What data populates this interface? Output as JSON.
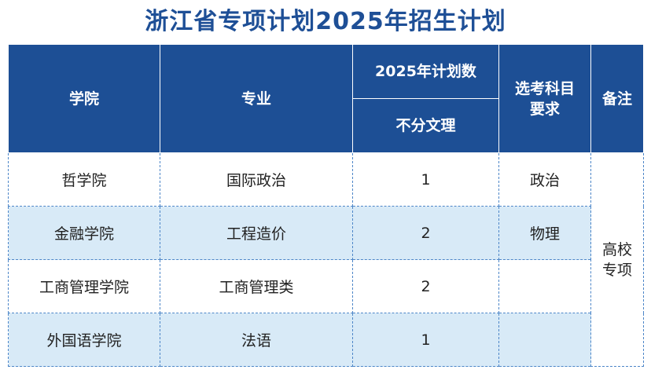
{
  "title": "浙江省专项计划2025年招生计划",
  "header": {
    "college": "学院",
    "major": "专业",
    "plan_group": "2025年计划数",
    "plan_sub": "不分文理",
    "subject_req_line1": "选考科目",
    "subject_req_line2": "要求",
    "remark": "备注"
  },
  "rows": [
    {
      "college": "哲学院",
      "major": "国际政治",
      "plan": "1",
      "subject_req": "政治"
    },
    {
      "college": "金融学院",
      "major": "工程造价",
      "plan": "2",
      "subject_req": "物理"
    },
    {
      "college": "工商管理学院",
      "major": "工商管理类",
      "plan": "2",
      "subject_req": ""
    },
    {
      "college": "外国语学院",
      "major": "法语",
      "plan": "1",
      "subject_req": ""
    }
  ],
  "remark": {
    "line1": "高校",
    "line2": "专项"
  },
  "colors": {
    "title": "#1e4f96",
    "header_bg": "#1d4f95",
    "row_shade": "#d8eaf7",
    "dashed_border": "#4d86c8"
  }
}
